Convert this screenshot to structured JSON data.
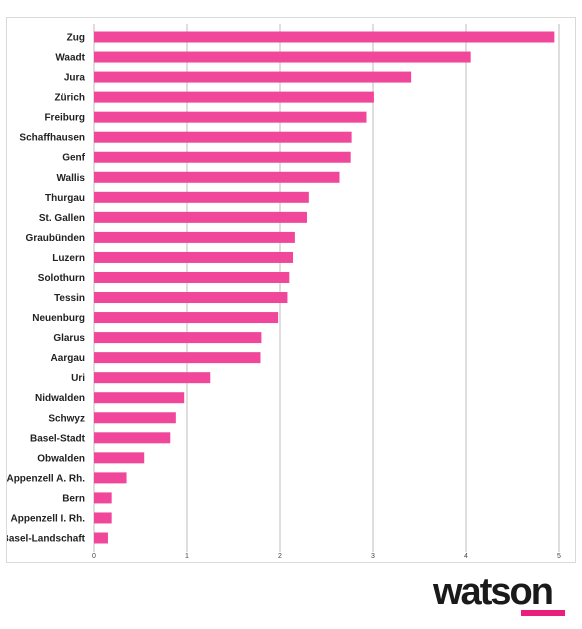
{
  "colors": {
    "bar": "#f0479b",
    "grid": "#bdbdbd",
    "logo_accent": "#ea1f7c"
  },
  "brand": {
    "name": "watson"
  },
  "chart_data": {
    "type": "bar",
    "orientation": "horizontal",
    "title": "",
    "xlabel": "",
    "ylabel": "",
    "xlim": [
      0,
      5
    ],
    "x_ticks": [
      "0",
      "1",
      "2",
      "3",
      "4",
      "5"
    ],
    "grid": true,
    "legend": "none",
    "categories": [
      "Zug",
      "Waadt",
      "Jura",
      "Zürich",
      "Freiburg",
      "Schaffhausen",
      "Genf",
      "Wallis",
      "Thurgau",
      "St. Gallen",
      "Graubünden",
      "Luzern",
      "Solothurn",
      "Tessin",
      "Neuenburg",
      "Glarus",
      "Aargau",
      "Uri",
      "Nidwalden",
      "Schwyz",
      "Basel-Stadt",
      "Obwalden",
      "Appenzell A. Rh.",
      "Bern",
      "Appenzell I. Rh.",
      "Basel-Landschaft"
    ],
    "values": [
      4.95,
      4.05,
      3.41,
      3.01,
      2.93,
      2.77,
      2.76,
      2.64,
      2.31,
      2.29,
      2.16,
      2.14,
      2.1,
      2.08,
      1.98,
      1.8,
      1.79,
      1.25,
      0.97,
      0.88,
      0.82,
      0.54,
      0.35,
      0.19,
      0.19,
      0.15
    ]
  }
}
